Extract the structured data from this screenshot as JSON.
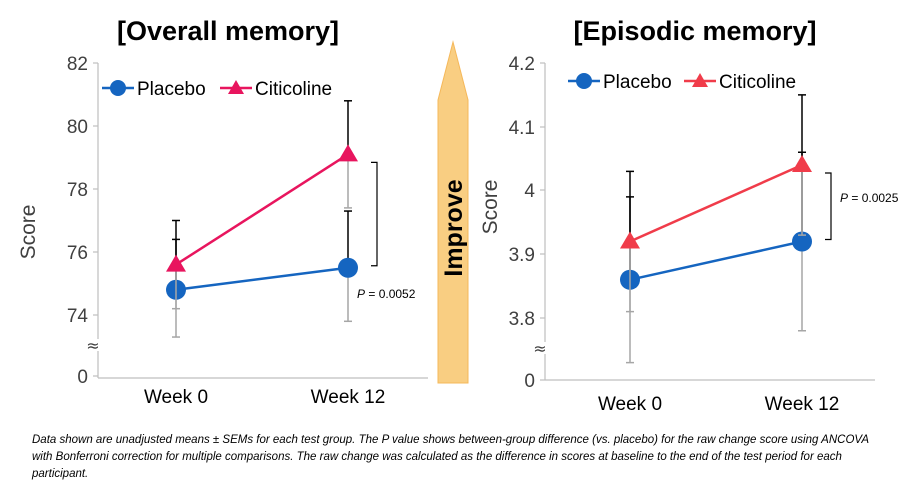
{
  "colors": {
    "placebo": "#1565C0",
    "citicoline": "#E8155E",
    "citicoline_right": "#F03C4A",
    "error_bar": "#000000",
    "error_bar_lower": "#A6A6A6",
    "axis": "#BFBFBF",
    "improve_arrow_fill": "#F9CE82",
    "improve_arrow_edge": "#F5B85A"
  },
  "improve_label": "Improve",
  "caption": "Data shown are unadjusted means ± SEMs for each test group. The P value shows between-group difference (vs. placebo) for the raw change score using ANCOVA with Bonferroni correction for multiple comparisons. The raw change was calculated as the difference in scores at baseline to the end of the test period for each participant.",
  "chart_data": [
    {
      "type": "line",
      "title": "[Overall memory]",
      "ylabel": "Score",
      "categories": [
        "Week 0",
        "Week 12"
      ],
      "y_ticks": [
        "82",
        "80",
        "78",
        "76",
        "74",
        "0"
      ],
      "ylim": [
        73,
        82
      ],
      "axis_break": true,
      "break_symbol": "≈",
      "series": [
        {
          "name": "Placebo",
          "marker": "circle",
          "values": [
            74.8,
            75.5
          ],
          "err_low": [
            73.3,
            73.8
          ],
          "err_high": [
            76.4,
            77.3
          ]
        },
        {
          "name": "Citicoline",
          "marker": "triangle",
          "values": [
            75.6,
            79.1
          ],
          "err_low": [
            74.2,
            77.4
          ],
          "err_high": [
            77.0,
            80.8
          ]
        }
      ],
      "p_value": {
        "label": "P",
        "text": " = 0.0052"
      },
      "legend": "top-left"
    },
    {
      "type": "line",
      "title": "[Episodic memory]",
      "ylabel": "Score",
      "categories": [
        "Week 0",
        "Week 12"
      ],
      "y_ticks": [
        "4.2",
        "4.1",
        "4",
        "3.9",
        "3.8",
        "0"
      ],
      "ylim": [
        3.75,
        4.2
      ],
      "axis_break": true,
      "break_symbol": "≈",
      "series": [
        {
          "name": "Placebo",
          "marker": "circle",
          "values": [
            3.86,
            3.92
          ],
          "err_low": [
            3.73,
            3.78
          ],
          "err_high": [
            3.99,
            4.06
          ]
        },
        {
          "name": "Citicoline",
          "marker": "triangle",
          "values": [
            3.92,
            4.04
          ],
          "err_low": [
            3.81,
            3.93
          ],
          "err_high": [
            4.03,
            4.15
          ]
        }
      ],
      "p_value": {
        "label": "P",
        "text": " = 0.0025"
      },
      "legend": "top-left"
    }
  ]
}
